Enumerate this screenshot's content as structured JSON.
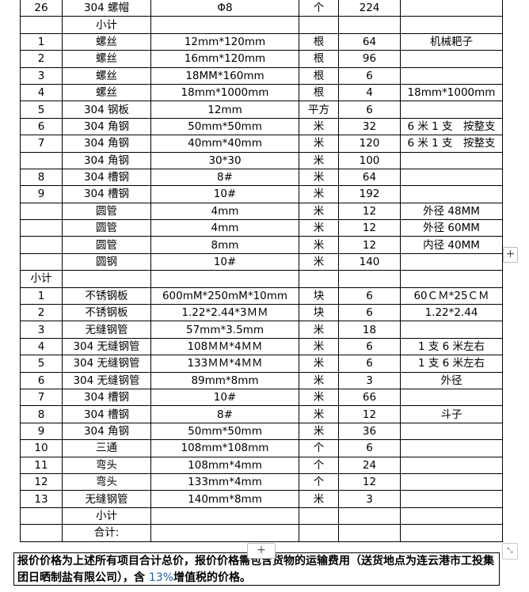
{
  "table": {
    "rows": [
      [
        "26",
        "304 螺帽",
        "Φ8",
        "个",
        "224",
        ""
      ],
      [
        "",
        "小计",
        "",
        "",
        "",
        ""
      ],
      [
        "1",
        "螺丝",
        "12mm*120mm",
        "根",
        "64",
        "机械耙子"
      ],
      [
        "2",
        "螺丝",
        "16mm*120mm",
        "根",
        "96",
        ""
      ],
      [
        "3",
        "螺丝",
        "18MM*160mm",
        "根",
        "6",
        ""
      ],
      [
        "4",
        "螺丝",
        "18mm*1000mm",
        "根",
        "4",
        "18mm*1000mm"
      ],
      [
        "5",
        "304 钢板",
        "12mm",
        "平方",
        "6",
        ""
      ],
      [
        "6",
        "304 角钢",
        "50mm*50mm",
        "米",
        "32",
        "6 米 1 支　按整支"
      ],
      [
        "7",
        "304 角钢",
        "40mm*40mm",
        "米",
        "120",
        "6 米 1 支　按整支"
      ],
      [
        "",
        "304 角钢",
        "30*30",
        "米",
        "100",
        ""
      ],
      [
        "8",
        "304 槽钢",
        "8#",
        "米",
        "64",
        ""
      ],
      [
        "9",
        "304 槽钢",
        "10#",
        "米",
        "192",
        ""
      ],
      [
        "",
        "圆管",
        "4mm",
        "米",
        "12",
        "外径 48MM"
      ],
      [
        "",
        "圆管",
        "4mm",
        "米",
        "12",
        "外径 60MM"
      ],
      [
        "",
        "圆管",
        "8mm",
        "米",
        "12",
        "内径 40MM"
      ],
      [
        "",
        "圆钢",
        "10#",
        "米",
        "140",
        ""
      ],
      [
        "小计",
        "",
        "",
        "",
        "",
        ""
      ],
      [
        "1",
        "不锈钢板",
        "600mM*250mM*10mm",
        "块",
        "6",
        "60ＣＭ*25ＣＭ"
      ],
      [
        "2",
        "不锈钢板",
        "1.22*2.44*3ＭＭ",
        "块",
        "6",
        "1.22*2.44"
      ],
      [
        "3",
        "无缝钢管",
        "57mm*3.5mm",
        "米",
        "18",
        ""
      ],
      [
        "4",
        "304 无缝钢管",
        "108ＭＭ*4ＭＭ",
        "米",
        "6",
        "1 支 6 米左右"
      ],
      [
        "5",
        "304 无缝钢管",
        "133ＭＭ*4ＭＭ",
        "米",
        "6",
        "1 支 6 米左右"
      ],
      [
        "6",
        "304 无缝钢管",
        "89mm*8mm",
        "米",
        "3",
        "外径"
      ],
      [
        "7",
        "304 槽钢",
        "10#",
        "米",
        "66",
        ""
      ],
      [
        "8",
        "304 槽钢",
        "8#",
        "米",
        "12",
        "斗子"
      ],
      [
        "9",
        "304 角钢",
        "50mm*50mm",
        "米",
        "36",
        ""
      ],
      [
        "10",
        "三通",
        "108mm*108mm",
        "个",
        "6",
        ""
      ],
      [
        "11",
        "弯头",
        "108mm*4mm",
        "个",
        "24",
        ""
      ],
      [
        "12",
        "弯头",
        "133mm*4mm",
        "个",
        "12",
        ""
      ],
      [
        "13",
        "无缝钢管",
        "140mm*8mm",
        "米",
        "3",
        ""
      ],
      [
        "",
        "小计",
        "",
        "",
        "",
        ""
      ],
      [
        "",
        "合计:",
        "",
        "",
        "",
        ""
      ]
    ]
  },
  "note": {
    "text_a": "报价价格为上述所有项目合计总价，报价价格需包含货物的运输费用（送货地点为连云港市工投集",
    "text_b": "团日晒制盐有限公司），含 ",
    "pct": "13%",
    "text_c": "增值税的价格。"
  },
  "controls": {
    "add_row": "+",
    "add_col": "+",
    "resize": "⤡"
  }
}
